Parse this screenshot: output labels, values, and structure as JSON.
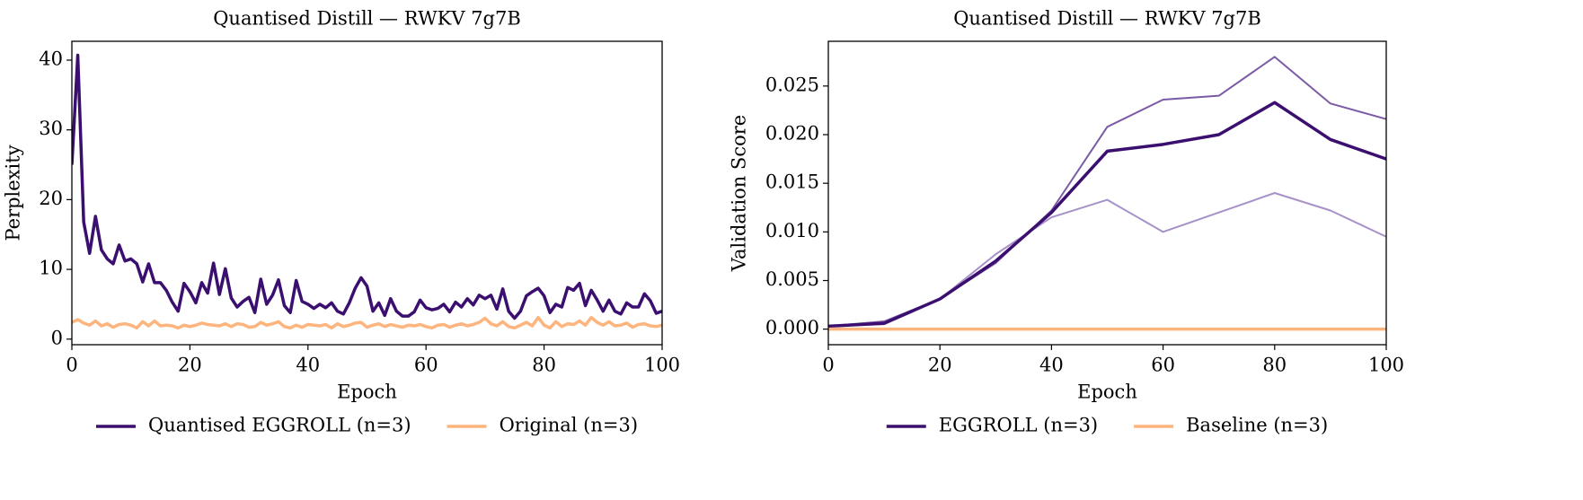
{
  "chart_data": [
    {
      "type": "line",
      "title": "Quantised Distill — RWKV 7g7B",
      "xlabel": "Epoch",
      "ylabel": "Perplexity",
      "x": [
        0,
        1,
        2,
        3,
        4,
        5,
        6,
        7,
        8,
        9,
        10,
        11,
        12,
        13,
        14,
        15,
        16,
        17,
        18,
        19,
        20,
        21,
        22,
        23,
        24,
        25,
        26,
        27,
        28,
        29,
        30,
        31,
        32,
        33,
        34,
        35,
        36,
        37,
        38,
        39,
        40,
        41,
        42,
        43,
        44,
        45,
        46,
        47,
        48,
        49,
        50,
        51,
        52,
        53,
        54,
        55,
        56,
        57,
        58,
        59,
        60,
        61,
        62,
        63,
        64,
        65,
        66,
        67,
        68,
        69,
        70,
        71,
        72,
        73,
        74,
        75,
        76,
        77,
        78,
        79,
        80,
        81,
        82,
        83,
        84,
        85,
        86,
        87,
        88,
        89,
        90,
        91,
        92,
        93,
        94,
        95,
        96,
        97,
        98,
        99,
        100
      ],
      "xlim": [
        0,
        100
      ],
      "xticks": [
        0,
        20,
        40,
        60,
        80,
        100
      ],
      "ylim": [
        -0.8,
        42.7
      ],
      "yticks": [
        0,
        10,
        20,
        30,
        40
      ],
      "series": [
        {
          "name": "Quantised EGGROLL (n=3)",
          "color": "#3b0f6f",
          "width": 3.5,
          "values": [
            25,
            40.7,
            16.8,
            12.3,
            17.6,
            12.8,
            11.5,
            10.8,
            13.5,
            11.2,
            11.5,
            10.8,
            8.2,
            10.8,
            8.1,
            8.1,
            7.0,
            5.3,
            4.0,
            8.0,
            6.8,
            5.2,
            8.1,
            6.6,
            10.9,
            6.4,
            10.1,
            5.9,
            4.6,
            5.4,
            6.0,
            3.8,
            8.6,
            5.0,
            6.3,
            8.5,
            4.8,
            3.8,
            8.4,
            5.4,
            5.0,
            4.4,
            5.0,
            4.5,
            5.2,
            4.0,
            3.6,
            5.2,
            7.3,
            8.8,
            7.6,
            4.0,
            5.2,
            3.4,
            5.8,
            4.0,
            3.3,
            3.3,
            3.9,
            5.6,
            4.5,
            4.2,
            4.4,
            5.0,
            3.9,
            5.3,
            4.6,
            5.8,
            4.9,
            6.3,
            5.8,
            6.3,
            4.3,
            7.2,
            4.0,
            3.0,
            4.0,
            6.2,
            6.8,
            7.3,
            6.2,
            3.8,
            5.0,
            4.6,
            7.4,
            7.0,
            8.0,
            4.8,
            7.0,
            5.6,
            4.0,
            5.6,
            4.0,
            3.6,
            5.2,
            4.6,
            4.6,
            6.5,
            5.5,
            3.7,
            4.0
          ]
        },
        {
          "name": "Original (n=3)",
          "color": "#fdb47d",
          "width": 3.5,
          "values": [
            2.4,
            2.8,
            2.3,
            2.0,
            2.6,
            1.9,
            2.2,
            1.7,
            2.1,
            2.2,
            2.0,
            1.6,
            2.5,
            1.9,
            2.6,
            1.9,
            2.0,
            1.9,
            1.6,
            2.0,
            1.8,
            2.0,
            2.3,
            2.1,
            2.0,
            1.9,
            2.2,
            1.8,
            2.2,
            2.1,
            1.7,
            1.8,
            2.4,
            2.0,
            2.2,
            2.5,
            1.8,
            1.6,
            2.0,
            1.7,
            2.1,
            2.0,
            1.9,
            2.1,
            1.6,
            2.2,
            1.8,
            2.0,
            2.3,
            2.4,
            1.7,
            2.0,
            2.2,
            1.8,
            2.1,
            1.9,
            1.7,
            2.0,
            1.9,
            2.1,
            1.8,
            1.6,
            2.0,
            2.1,
            1.7,
            2.0,
            2.2,
            1.9,
            2.1,
            2.4,
            3.0,
            2.2,
            1.9,
            2.5,
            1.8,
            1.6,
            2.0,
            2.4,
            1.9,
            3.1,
            2.0,
            1.6,
            2.5,
            1.8,
            2.2,
            2.1,
            2.6,
            2.0,
            3.1,
            2.4,
            2.0,
            2.5,
            1.9,
            2.0,
            2.3,
            1.7,
            2.1,
            2.2,
            1.9,
            1.8,
            2.0
          ]
        }
      ]
    },
    {
      "type": "line",
      "title": "Quantised Distill — RWKV 7g7B",
      "xlabel": "Epoch",
      "ylabel": "Validation Score",
      "x": [
        0,
        10,
        20,
        30,
        40,
        50,
        60,
        70,
        80,
        90,
        100
      ],
      "xlim": [
        0,
        100
      ],
      "xticks": [
        0,
        20,
        40,
        60,
        80,
        100
      ],
      "ylim": [
        -0.0016,
        0.0296
      ],
      "yticks": [
        {
          "value": 0,
          "label": "0.000"
        },
        {
          "value": 0.005,
          "label": "0.005"
        },
        {
          "value": 0.01,
          "label": "0.010"
        },
        {
          "value": 0.015,
          "label": "0.015"
        },
        {
          "value": 0.02,
          "label": "0.020"
        },
        {
          "value": 0.025,
          "label": "0.025"
        }
      ],
      "series": [
        {
          "color": "#7b5aa6",
          "width": 2,
          "values": [
            0.0003,
            0.0008,
            0.0031,
            0.0068,
            0.0122,
            0.0208,
            0.0236,
            0.024,
            0.028,
            0.0232,
            0.0216
          ]
        },
        {
          "color": "#a692c8",
          "width": 2,
          "values": [
            0.0003,
            0.0005,
            0.0031,
            0.0077,
            0.0115,
            0.0133,
            0.01,
            0.012,
            0.014,
            0.0122,
            0.0095
          ]
        },
        {
          "name": "EGGROLL (n=3)",
          "color": "#3b0f6f",
          "width": 3.5,
          "values": [
            0.0003,
            0.0006,
            0.0031,
            0.007,
            0.012,
            0.0183,
            0.019,
            0.02,
            0.0233,
            0.0195,
            0.0175
          ]
        },
        {
          "name": "Baseline (n=3)",
          "color": "#fdb47d",
          "width": 3.5,
          "values": [
            0,
            0,
            0,
            0,
            0,
            0,
            0,
            0,
            0,
            0,
            0
          ]
        }
      ]
    }
  ]
}
